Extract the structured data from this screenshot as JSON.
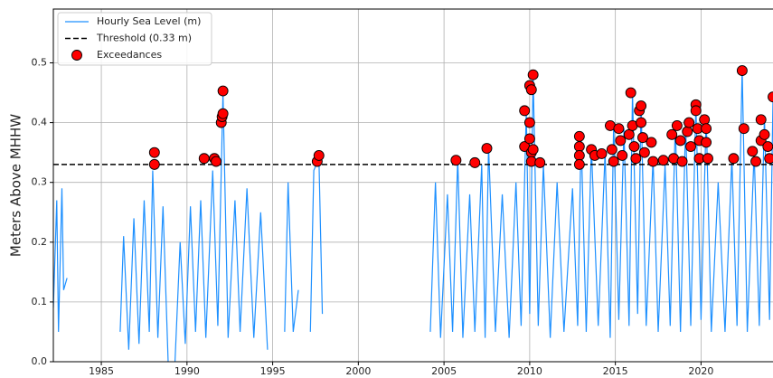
{
  "chart_data": {
    "type": "line",
    "ylabel": "Meters Above MHHW",
    "xlim": [
      1982.2,
      2024.2
    ],
    "ylim": [
      0,
      0.59
    ],
    "xticks": [
      1985,
      1990,
      1995,
      2000,
      2005,
      2010,
      2015,
      2020
    ],
    "yticks": [
      {
        "value": 0,
        "label": "0.0"
      },
      0.1,
      0.2,
      0.3,
      0.4,
      0.5
    ],
    "grid": true,
    "legend": "upper left",
    "series": [
      {
        "name": "Hourly Sea Level (m)",
        "style": "line",
        "color": "#1e90ff",
        "x": [
          1982.2,
          1982.4,
          1982.5,
          1982.7,
          1982.8,
          1983.0,
          1983.05,
          1986.1,
          1986.3,
          1986.6,
          1986.9,
          1987.2,
          1987.5,
          1987.8,
          1988.0,
          1988.3,
          1988.6,
          1988.9,
          1989.1,
          1989.3,
          1989.6,
          1989.9,
          1990.2,
          1990.5,
          1990.8,
          1991.1,
          1991.5,
          1991.8,
          1992.1,
          1992.4,
          1992.8,
          1993.1,
          1993.5,
          1993.9,
          1994.3,
          1994.7,
          1994.9,
          1995.7,
          1995.9,
          1996.2,
          1996.5,
          1996.8,
          1997.2,
          1997.4,
          1997.7,
          1997.9,
          1998.5,
          2004.2,
          2004.5,
          2004.8,
          2005.2,
          2005.5,
          2005.8,
          2006.1,
          2006.5,
          2006.8,
          2007.2,
          2007.4,
          2007.6,
          2008.0,
          2008.4,
          2008.8,
          2009.2,
          2009.5,
          2009.8,
          2010.0,
          2010.2,
          2010.5,
          2010.8,
          2011.2,
          2011.6,
          2012.0,
          2012.5,
          2012.8,
          2013.0,
          2013.3,
          2013.6,
          2014.0,
          2014.4,
          2014.7,
          2014.9,
          2015.2,
          2015.5,
          2015.8,
          2016.0,
          2016.3,
          2016.5,
          2016.8,
          2017.2,
          2017.5,
          2017.9,
          2018.2,
          2018.5,
          2018.8,
          2019.1,
          2019.4,
          2019.7,
          2020.0,
          2020.3,
          2020.6,
          2021.0,
          2021.4,
          2021.8,
          2022.1,
          2022.4,
          2022.7,
          2023.1,
          2023.4,
          2023.7,
          2024.0,
          2024.2
        ],
        "values": [
          0.09,
          0.27,
          0.05,
          0.29,
          0.12,
          0.14,
          null,
          0.05,
          0.21,
          0.02,
          0.24,
          0.03,
          0.27,
          0.05,
          0.32,
          0.04,
          0.26,
          0.0,
          null,
          0.0,
          0.2,
          0.03,
          0.26,
          0.05,
          0.27,
          0.04,
          0.32,
          0.06,
          0.45,
          0.04,
          0.27,
          0.05,
          0.29,
          0.04,
          0.25,
          0.02,
          null,
          0.05,
          0.3,
          0.05,
          0.12,
          null,
          0.05,
          0.32,
          0.34,
          0.08,
          null,
          0.05,
          0.3,
          0.04,
          0.28,
          0.05,
          0.34,
          0.04,
          0.28,
          0.05,
          0.33,
          0.04,
          0.36,
          0.05,
          0.28,
          0.04,
          0.3,
          0.06,
          0.42,
          0.08,
          0.48,
          0.06,
          0.33,
          0.04,
          0.3,
          0.05,
          0.29,
          0.06,
          0.38,
          0.05,
          0.36,
          0.06,
          0.35,
          0.04,
          0.4,
          0.07,
          0.39,
          0.06,
          0.45,
          0.08,
          0.43,
          0.06,
          0.34,
          0.05,
          0.33,
          0.06,
          0.4,
          0.05,
          0.4,
          0.06,
          0.43,
          0.07,
          0.41,
          0.05,
          0.3,
          0.05,
          0.34,
          0.06,
          0.49,
          0.05,
          0.35,
          0.06,
          0.41,
          0.07,
          0.44
        ]
      },
      {
        "name": "Threshold (0.33 m)",
        "style": "hline",
        "color": "#000000",
        "values": [
          0.33
        ]
      },
      {
        "name": "Exceedances",
        "style": "scatter",
        "color": "#ff0000",
        "x": [
          1988.1,
          1988.1,
          1991.0,
          1991.6,
          1991.7,
          1992.0,
          1992.05,
          1992.1,
          1992.1,
          1997.6,
          1997.7,
          2005.7,
          2006.8,
          2007.5,
          2009.7,
          2009.7,
          2010.0,
          2010.0,
          2010.0,
          2010.1,
          2010.2,
          2010.1,
          2010.1,
          2010.2,
          2010.6,
          2012.9,
          2012.9,
          2012.9,
          2012.9,
          2013.6,
          2013.8,
          2014.2,
          2014.7,
          2014.8,
          2014.9,
          2015.2,
          2015.3,
          2015.4,
          2015.8,
          2015.9,
          2016.0,
          2016.1,
          2016.2,
          2016.4,
          2016.5,
          2016.5,
          2016.6,
          2016.7,
          2017.1,
          2017.2,
          2017.8,
          2018.3,
          2018.4,
          2018.6,
          2018.8,
          2018.9,
          2019.2,
          2019.3,
          2019.4,
          2019.7,
          2019.7,
          2019.8,
          2019.9,
          2019.9,
          2020.2,
          2020.3,
          2020.3,
          2020.4,
          2021.9,
          2022.4,
          2022.5,
          2023.0,
          2023.2,
          2023.5,
          2023.5,
          2023.7,
          2023.9,
          2024.0,
          2024.2
        ],
        "values": [
          0.35,
          0.33,
          0.34,
          0.34,
          0.335,
          0.4,
          0.41,
          0.415,
          0.453,
          0.335,
          0.345,
          0.337,
          0.333,
          0.357,
          0.42,
          0.36,
          0.373,
          0.4,
          0.462,
          0.455,
          0.48,
          0.35,
          0.335,
          0.355,
          0.333,
          0.377,
          0.36,
          0.345,
          0.33,
          0.355,
          0.345,
          0.348,
          0.395,
          0.355,
          0.335,
          0.39,
          0.37,
          0.345,
          0.38,
          0.45,
          0.395,
          0.36,
          0.34,
          0.42,
          0.428,
          0.4,
          0.375,
          0.35,
          0.367,
          0.335,
          0.337,
          0.38,
          0.34,
          0.395,
          0.37,
          0.335,
          0.385,
          0.4,
          0.36,
          0.43,
          0.42,
          0.39,
          0.37,
          0.34,
          0.405,
          0.39,
          0.367,
          0.34,
          0.34,
          0.487,
          0.39,
          0.352,
          0.335,
          0.405,
          0.37,
          0.38,
          0.36,
          0.34,
          0.443
        ]
      }
    ]
  }
}
